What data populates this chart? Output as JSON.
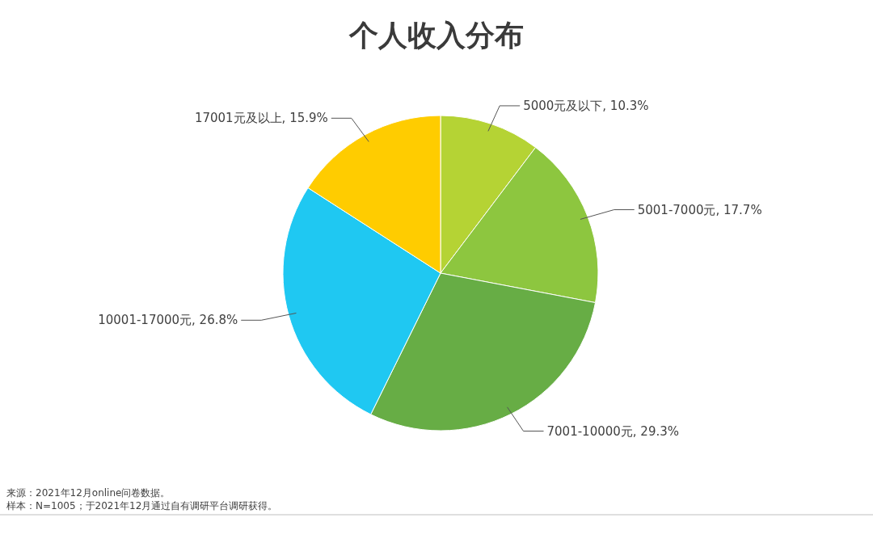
{
  "chart_data": {
    "type": "pie",
    "title": "个人收入分布",
    "categories": [
      "5000元及以下",
      "5001-7000元",
      "7001-10000元",
      "10001-17000元",
      "17001元及以上"
    ],
    "values": [
      10.3,
      17.7,
      29.3,
      26.8,
      15.9
    ],
    "value_labels": [
      "10.3%",
      "17.7%",
      "29.3%",
      "26.8%",
      "15.9%"
    ],
    "colors": [
      "#b5d334",
      "#8dc63f",
      "#67ad45",
      "#1fc8f2",
      "#ffcc00"
    ],
    "annotations": [
      "来源：2021年12月online问卷数据。",
      "样本：N=1005；于2021年12月通过自有调研平台调研获得。"
    ]
  }
}
